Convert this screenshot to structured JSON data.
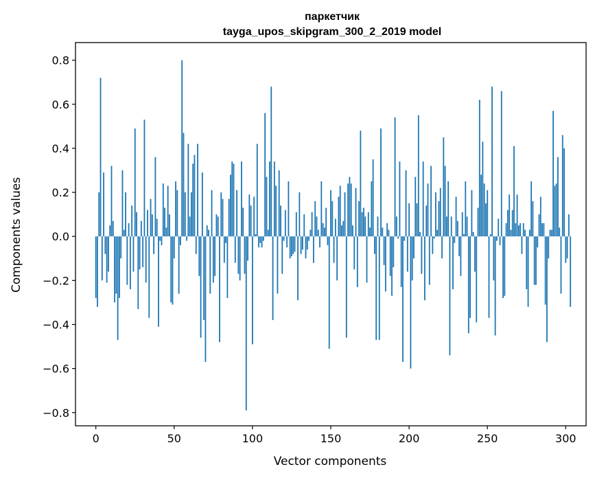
{
  "chart_data": {
    "type": "bar",
    "title": "паркетчик",
    "subtitle": "tayga_upos_skipgram_300_2_2019 model",
    "xlabel": "Vector components",
    "ylabel": "Components values",
    "xlim": [
      -13,
      313
    ],
    "ylim": [
      -0.86,
      0.88
    ],
    "x_ticks": [
      0,
      50,
      100,
      150,
      200,
      250,
      300
    ],
    "x_tick_labels": [
      "0",
      "50",
      "100",
      "150",
      "200",
      "250",
      "300"
    ],
    "y_ticks": [
      -0.8,
      -0.6,
      -0.4,
      -0.2,
      0.0,
      0.2,
      0.4,
      0.6,
      0.8
    ],
    "y_tick_labels": [
      "−0.8",
      "−0.6",
      "−0.4",
      "−0.2",
      "0.0",
      "0.2",
      "0.4",
      "0.6",
      "0.8"
    ],
    "bar_color": "#1f77b4",
    "grid": false,
    "series": [
      {
        "values": [
          -0.28,
          -0.32,
          0.2,
          0.72,
          -0.2,
          0.29,
          -0.08,
          -0.21,
          -0.16,
          0.05,
          0.32,
          0.07,
          -0.3,
          -0.26,
          -0.47,
          -0.28,
          -0.1,
          0.3,
          0.03,
          0.2,
          -0.22,
          0.06,
          -0.24,
          0.14,
          -0.16,
          0.49,
          0.11,
          -0.33,
          -0.15,
          0.07,
          -0.14,
          0.53,
          -0.21,
          0.12,
          -0.37,
          0.17,
          0.1,
          -0.08,
          0.36,
          0.08,
          -0.41,
          -0.02,
          -0.04,
          0.24,
          0.13,
          0.04,
          0.23,
          0.1,
          -0.3,
          -0.31,
          -0.1,
          0.25,
          0.21,
          -0.26,
          -0.04,
          0.8,
          0.47,
          0.2,
          -0.02,
          0.42,
          0.09,
          0.2,
          0.33,
          0.37,
          -0.08,
          0.42,
          -0.18,
          -0.46,
          0.29,
          -0.38,
          -0.57,
          0.05,
          0.03,
          -0.26,
          0.21,
          -0.21,
          -0.18,
          0.1,
          0.09,
          -0.48,
          0.2,
          0.17,
          -0.12,
          -0.03,
          -0.28,
          0.17,
          0.28,
          0.34,
          0.33,
          -0.12,
          0.21,
          -0.17,
          -0.2,
          0.34,
          0.13,
          -0.17,
          -0.79,
          -0.11,
          0.19,
          0.14,
          -0.49,
          0.18,
          0.01,
          0.42,
          -0.05,
          -0.03,
          -0.05,
          -0.02,
          0.56,
          0.27,
          0.03,
          0.34,
          0.68,
          -0.38,
          0.34,
          0.23,
          -0.26,
          0.3,
          0.14,
          -0.17,
          -0.02,
          0.12,
          -0.05,
          0.25,
          -0.1,
          -0.09,
          -0.08,
          -0.07,
          0.11,
          -0.29,
          0.2,
          -0.08,
          -0.06,
          0.1,
          -0.1,
          -0.06,
          -0.02,
          0.03,
          0.11,
          -0.12,
          0.16,
          0.09,
          0.03,
          -0.05,
          0.25,
          0.06,
          0.04,
          0.13,
          -0.04,
          -0.51,
          0.21,
          0.16,
          -0.12,
          0.08,
          -0.2,
          0.18,
          0.23,
          0.05,
          0.07,
          0.2,
          -0.46,
          0.24,
          0.27,
          0.24,
          0.05,
          -0.15,
          0.22,
          -0.23,
          0.16,
          0.48,
          0.11,
          0.13,
          0.09,
          -0.21,
          0.11,
          0.04,
          0.25,
          0.35,
          -0.08,
          -0.47,
          0.09,
          -0.47,
          0.49,
          0.04,
          -0.13,
          -0.25,
          0.06,
          0.03,
          -0.18,
          -0.27,
          -0.14,
          0.54,
          0.09,
          -0.01,
          0.34,
          -0.23,
          -0.57,
          -0.02,
          0.3,
          -0.16,
          0.15,
          -0.6,
          -0.2,
          -0.1,
          0.27,
          0.15,
          0.55,
          0.02,
          -0.17,
          0.34,
          -0.29,
          0.14,
          0.24,
          -0.22,
          0.32,
          -0.08,
          -0.01,
          0.2,
          0.03,
          0.16,
          0.22,
          -0.1,
          0.45,
          0.32,
          0.09,
          0.25,
          -0.54,
          0.09,
          -0.24,
          -0.03,
          0.18,
          0.07,
          -0.09,
          -0.18,
          0.11,
          0.01,
          0.25,
          0.09,
          -0.44,
          -0.37,
          0.21,
          0.02,
          -0.16,
          -0.39,
          0.13,
          0.62,
          0.28,
          0.43,
          0.24,
          0.15,
          0.21,
          -0.37,
          0.01,
          0.68,
          -0.2,
          -0.45,
          -0.02,
          0.08,
          -0.04,
          0.66,
          -0.28,
          -0.27,
          0.06,
          0.12,
          0.19,
          0.03,
          0.12,
          0.41,
          0.06,
          0.19,
          0.05,
          0.06,
          -0.08,
          0.06,
          0.03,
          -0.24,
          -0.32,
          0.03,
          0.25,
          0.16,
          -0.22,
          -0.22,
          -0.05,
          0.1,
          0.18,
          0.06,
          0.06,
          -0.31,
          -0.48,
          -0.1,
          0.03,
          0.03,
          0.57,
          0.23,
          0.24,
          0.36,
          0.04,
          -0.26,
          0.46,
          0.4,
          -0.12,
          -0.1,
          0.1,
          -0.32
        ]
      }
    ]
  }
}
